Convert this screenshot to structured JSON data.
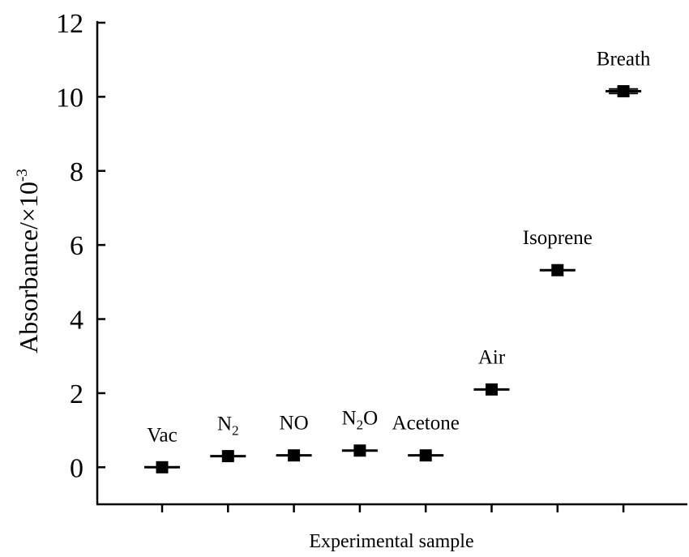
{
  "chart_data": {
    "type": "scatter",
    "title": "",
    "xlabel": "Experimental sample",
    "ylabel": "Absorbance/×10",
    "ylabel_exponent": "-3",
    "ylim": [
      -1,
      12
    ],
    "yticks": [
      0,
      2,
      4,
      6,
      8,
      10,
      12
    ],
    "grid": false,
    "legend": "none",
    "marker_color": "#000000",
    "points": [
      {
        "label": "Vac",
        "label_sub": "",
        "label_suffix": "",
        "y": 0.0,
        "err": 0.02
      },
      {
        "label": "N",
        "label_sub": "2",
        "label_suffix": "",
        "y": 0.3,
        "err": 0.02
      },
      {
        "label": "NO",
        "label_sub": "",
        "label_suffix": "",
        "y": 0.32,
        "err": 0.02
      },
      {
        "label": "N",
        "label_sub": "2",
        "label_suffix": "O",
        "y": 0.45,
        "err": 0.03
      },
      {
        "label": "Acetone",
        "label_sub": "",
        "label_suffix": "",
        "y": 0.32,
        "err": 0.02
      },
      {
        "label": "Air",
        "label_sub": "",
        "label_suffix": "",
        "y": 2.1,
        "err": 0.03
      },
      {
        "label": "Isoprene",
        "label_sub": "",
        "label_suffix": "",
        "y": 5.32,
        "err": 0.04
      },
      {
        "label": "Breath",
        "label_sub": "",
        "label_suffix": "",
        "y": 10.15,
        "err": 0.06
      }
    ]
  }
}
